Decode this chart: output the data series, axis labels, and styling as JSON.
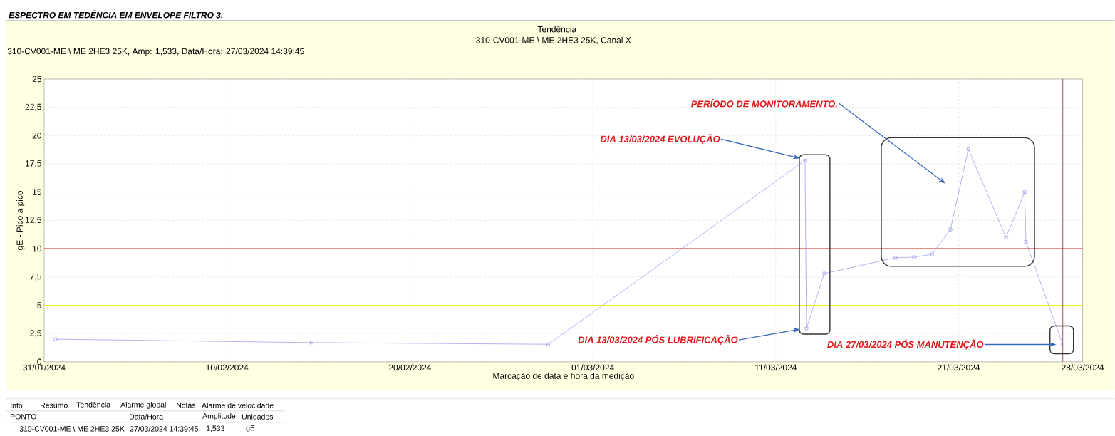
{
  "chart_data": {
    "type": "line",
    "title": "Tendência",
    "subtitle": "310-CV001-ME \\ ME  2HE3 25K, Canal X",
    "xlabel": "Marcação de data e hora da medição",
    "ylabel": "gE - Pico a pico",
    "x": [
      "2024-02-01T13:00",
      "2024-02-15T13:00",
      "2024-02-28T11:30",
      "2024-03-13T12:24",
      "2024-03-13T14:20",
      "2024-03-14T13:36",
      "2024-03-18T11:12",
      "2024-03-19T11:30",
      "2024-03-20T11:00",
      "2024-03-21T11:12",
      "2024-03-22T10:45",
      "2024-03-24T12:10",
      "2024-03-25T12:40",
      "2024-03-25T14:20",
      "2024-03-27T14:40"
    ],
    "series": [
      {
        "color": "#7f7fef",
        "values": [
          2.0,
          1.7,
          1.55,
          17.8,
          2.95,
          7.8,
          9.2,
          9.25,
          9.5,
          11.7,
          18.8,
          11.0,
          15.0,
          10.6,
          1.533
        ]
      }
    ],
    "marker": "square",
    "grid": true,
    "xlim": [
      "2024-01-31T22:00",
      "2024-03-28T16:45"
    ],
    "xticks": [
      {
        "value": "2024-01-31T22:00",
        "label": "31/01/2024"
      },
      {
        "value": "2024-02-10T22:00",
        "label": "10/02/2024"
      },
      {
        "value": "2024-02-20T22:00",
        "label": "20/02/2024"
      },
      {
        "value": "2024-03-01T22:00",
        "label": "01/03/2024"
      },
      {
        "value": "2024-03-11T22:00",
        "label": "11/03/2024"
      },
      {
        "value": "2024-03-21T22:00",
        "label": "21/03/2024"
      },
      {
        "value": "2024-03-28T16:45",
        "label": "28/03/2024"
      }
    ],
    "ylim": [
      0,
      25
    ],
    "yticks": [
      0,
      {
        "value": 2.5,
        "label": "2,5"
      },
      5,
      {
        "value": 7.5,
        "label": "7,5"
      },
      10,
      {
        "value": 12.5,
        "label": "12,5"
      },
      15,
      {
        "value": 17.5,
        "label": "17,5"
      },
      20,
      {
        "value": 22.5,
        "label": "22,5"
      },
      25
    ],
    "ref_lines": [
      {
        "axis": "y",
        "value": 10,
        "color": "#e31a1c"
      },
      {
        "axis": "y",
        "value": 5,
        "color": "#f2f20a"
      },
      {
        "axis": "x",
        "value": "2024-03-27T14:40",
        "color": "#8b2a3a"
      }
    ],
    "annotations": [
      "ESPECTRO EM TEDÊNCIA EM ENVELOPE FILTRO 3.",
      "310-CV001-ME \\ ME  2HE3 25K, Amp: 1,533, Data/Hora: 27/03/2024 14:39:45",
      "PERÍODO DE MONITORAMENTO.",
      "DIA 13/03/2024 EVOLUÇÃO",
      "DIA 13/03/2024 PÓS LUBRIFICAÇÃO",
      "DIA 27/03/2024 PÓS MANUTENÇÃO",
      "Info",
      "Resumo",
      "Tendência",
      "Alarme global",
      "Notas",
      "Alarme de velocidade",
      "PONTO",
      "Data/Hora",
      "Amplitude",
      "Unidades",
      "310-CV001-ME \\ ME  2HE3 25K",
      "27/03/2024 14:39:45",
      "1,533",
      "gE"
    ]
  }
}
